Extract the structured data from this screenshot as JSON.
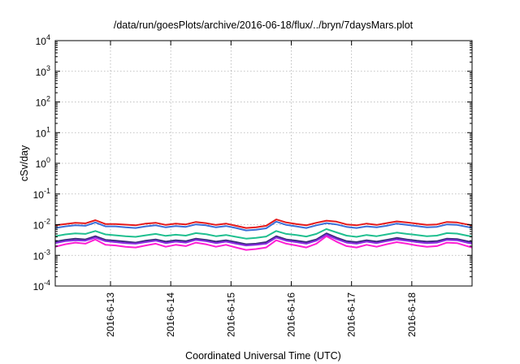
{
  "chart_data": {
    "type": "line",
    "title": "/data/run/goesPlots/archive/2016-06-18/flux/../bryn/7daysMars.plot",
    "xlabel": "Coordinated Universal Time (UTC)",
    "ylabel": "cSv/day",
    "yscale": "log",
    "ylim": [
      0.0001,
      10000
    ],
    "y_ticks": [
      {
        "value": 0.0001,
        "base": "10",
        "exp": "-4"
      },
      {
        "value": 0.001,
        "base": "10",
        "exp": "-3"
      },
      {
        "value": 0.01,
        "base": "10",
        "exp": "-2"
      },
      {
        "value": 0.1,
        "base": "10",
        "exp": "-1"
      },
      {
        "value": 1,
        "base": "10",
        "exp": "0"
      },
      {
        "value": 10,
        "base": "10",
        "exp": "1"
      },
      {
        "value": 100,
        "base": "10",
        "exp": "2"
      },
      {
        "value": 1000,
        "base": "10",
        "exp": "3"
      },
      {
        "value": 10000,
        "base": "10",
        "exp": "4"
      }
    ],
    "xlim": [
      "2016-06-12T02:00",
      "2016-06-19T00:00"
    ],
    "x_ticks": [
      "2016-6-13",
      "2016-6-14",
      "2016-6-15",
      "2016-6-16",
      "2016-6-17",
      "2016-6-18"
    ],
    "x_tick_dates": [
      "2016-06-13T00:00",
      "2016-06-14T00:00",
      "2016-06-15T00:00",
      "2016-06-16T00:00",
      "2016-06-17T00:00",
      "2016-06-18T00:00"
    ],
    "grid": true,
    "x": [
      "2016-06-12T02:00",
      "2016-06-12T06:00",
      "2016-06-12T10:00",
      "2016-06-12T14:00",
      "2016-06-12T18:00",
      "2016-06-12T22:00",
      "2016-06-13T02:00",
      "2016-06-13T06:00",
      "2016-06-13T10:00",
      "2016-06-13T14:00",
      "2016-06-13T18:00",
      "2016-06-13T22:00",
      "2016-06-14T02:00",
      "2016-06-14T06:00",
      "2016-06-14T10:00",
      "2016-06-14T14:00",
      "2016-06-14T18:00",
      "2016-06-14T22:00",
      "2016-06-15T02:00",
      "2016-06-15T06:00",
      "2016-06-15T10:00",
      "2016-06-15T14:00",
      "2016-06-15T18:00",
      "2016-06-15T22:00",
      "2016-06-16T02:00",
      "2016-06-16T06:00",
      "2016-06-16T10:00",
      "2016-06-16T14:00",
      "2016-06-16T18:00",
      "2016-06-16T22:00",
      "2016-06-17T02:00",
      "2016-06-17T06:00",
      "2016-06-17T10:00",
      "2016-06-17T14:00",
      "2016-06-17T18:00",
      "2016-06-17T22:00",
      "2016-06-18T02:00",
      "2016-06-18T06:00",
      "2016-06-18T10:00",
      "2016-06-18T14:00",
      "2016-06-18T18:00",
      "2016-06-18T22:00",
      "2016-06-19T00:00"
    ],
    "series": [
      {
        "color": "#e41a1c",
        "values": [
          0.0095,
          0.0105,
          0.0115,
          0.011,
          0.014,
          0.0105,
          0.0105,
          0.01,
          0.0095,
          0.0108,
          0.0115,
          0.0098,
          0.0108,
          0.0102,
          0.0122,
          0.0112,
          0.0098,
          0.0108,
          0.0092,
          0.0078,
          0.0082,
          0.0092,
          0.0148,
          0.0118,
          0.0105,
          0.0095,
          0.0115,
          0.0135,
          0.0125,
          0.0102,
          0.0095,
          0.0108,
          0.0098,
          0.0112,
          0.0128,
          0.0118,
          0.0108,
          0.0098,
          0.0102,
          0.0122,
          0.0118,
          0.0102,
          0.0096
        ]
      },
      {
        "color": "#3a6fd8",
        "values": [
          0.0078,
          0.0088,
          0.0095,
          0.0092,
          0.0118,
          0.0088,
          0.0088,
          0.0082,
          0.0078,
          0.0088,
          0.0095,
          0.0082,
          0.009,
          0.0085,
          0.0102,
          0.0095,
          0.0082,
          0.009,
          0.0078,
          0.0065,
          0.0068,
          0.0076,
          0.0125,
          0.0098,
          0.0088,
          0.0078,
          0.0095,
          0.0112,
          0.0102,
          0.0085,
          0.0078,
          0.0088,
          0.0082,
          0.0092,
          0.0108,
          0.0098,
          0.009,
          0.0082,
          0.0085,
          0.0102,
          0.0098,
          0.0085,
          0.0079
        ]
      },
      {
        "color": "#1fbf8f",
        "values": [
          0.0042,
          0.0048,
          0.0052,
          0.005,
          0.0062,
          0.0048,
          0.0045,
          0.0042,
          0.004,
          0.0045,
          0.005,
          0.0043,
          0.0047,
          0.0044,
          0.0053,
          0.0049,
          0.0042,
          0.0046,
          0.004,
          0.0035,
          0.0037,
          0.0041,
          0.0062,
          0.005,
          0.0046,
          0.0041,
          0.005,
          0.0072,
          0.0056,
          0.0044,
          0.004,
          0.0046,
          0.0042,
          0.0048,
          0.0055,
          0.005,
          0.0046,
          0.0042,
          0.0044,
          0.0053,
          0.0051,
          0.0044,
          0.0041
        ]
      },
      {
        "color": "#3b2a7a",
        "values": [
          0.0028,
          0.0032,
          0.0035,
          0.0033,
          0.0042,
          0.0032,
          0.003,
          0.0028,
          0.0026,
          0.003,
          0.0033,
          0.0028,
          0.0031,
          0.0029,
          0.0035,
          0.0032,
          0.0028,
          0.0031,
          0.0027,
          0.0023,
          0.0024,
          0.0027,
          0.0042,
          0.0033,
          0.003,
          0.0027,
          0.0033,
          0.0052,
          0.0038,
          0.0029,
          0.0027,
          0.0031,
          0.0028,
          0.0032,
          0.0037,
          0.0033,
          0.003,
          0.0028,
          0.0029,
          0.0035,
          0.0034,
          0.0029,
          0.0027
        ]
      },
      {
        "color": "#8a2be2",
        "values": [
          0.0025,
          0.0029,
          0.0031,
          0.003,
          0.0038,
          0.0029,
          0.0027,
          0.0025,
          0.0024,
          0.0027,
          0.003,
          0.0025,
          0.0028,
          0.0026,
          0.0032,
          0.0029,
          0.0025,
          0.0028,
          0.0024,
          0.0021,
          0.0022,
          0.0024,
          0.0038,
          0.003,
          0.0027,
          0.0024,
          0.003,
          0.0047,
          0.0034,
          0.0026,
          0.0024,
          0.0028,
          0.0025,
          0.0029,
          0.0033,
          0.003,
          0.0027,
          0.0025,
          0.0026,
          0.0032,
          0.0031,
          0.0026,
          0.0024
        ]
      },
      {
        "color": "#ff1fd4",
        "values": [
          0.0019,
          0.0023,
          0.0026,
          0.0024,
          0.0033,
          0.0022,
          0.0021,
          0.0019,
          0.0018,
          0.0021,
          0.0024,
          0.0019,
          0.0022,
          0.002,
          0.0026,
          0.0023,
          0.0019,
          0.0022,
          0.0018,
          0.0015,
          0.0016,
          0.0018,
          0.0031,
          0.0024,
          0.0021,
          0.0018,
          0.0024,
          0.0042,
          0.0028,
          0.002,
          0.0018,
          0.0022,
          0.0019,
          0.0023,
          0.0027,
          0.0024,
          0.0021,
          0.0019,
          0.002,
          0.0026,
          0.0025,
          0.002,
          0.0018
        ]
      }
    ]
  }
}
